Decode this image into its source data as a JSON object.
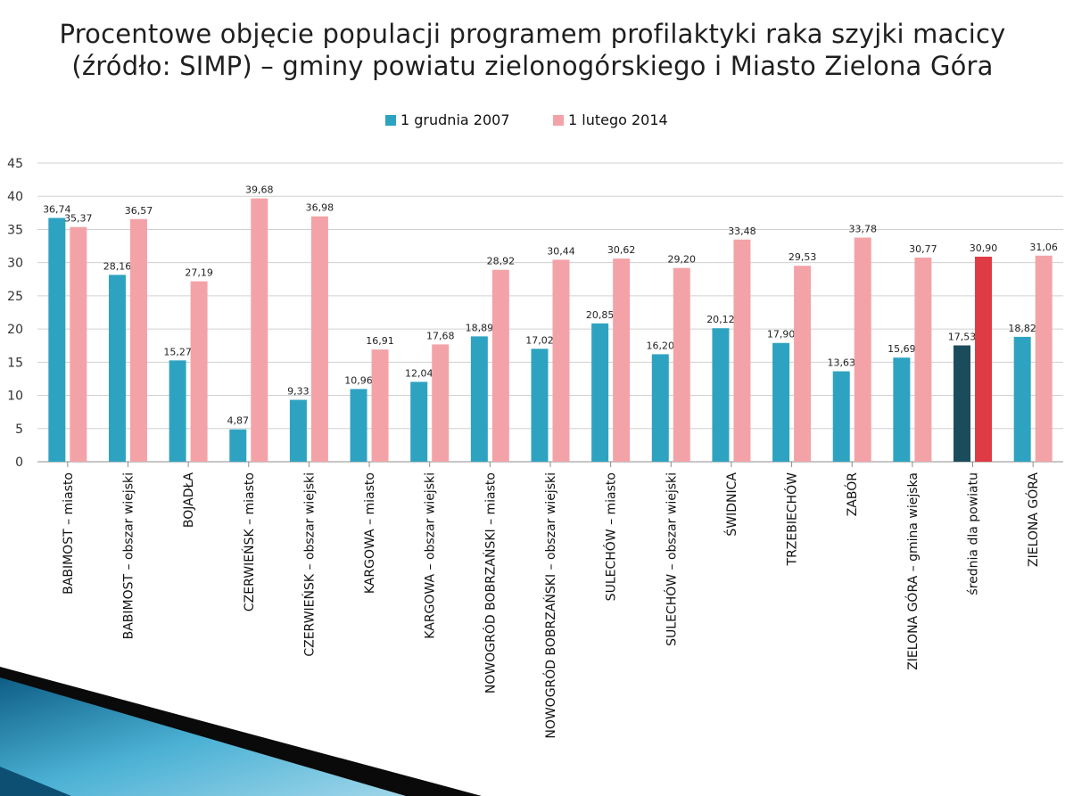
{
  "slide": {
    "title_line1": "Procentowe objęcie populacji programem profilaktyki raka szyjki macicy",
    "title_line2": "(źródło: SIMP) – gminy powiatu zielonogórskiego i Miasto Zielona Góra"
  },
  "chart_data": {
    "type": "bar",
    "title": "",
    "xlabel": "",
    "ylabel": "",
    "ylim": [
      0,
      45
    ],
    "yticks": [
      0,
      5,
      10,
      15,
      20,
      25,
      30,
      35,
      40,
      45
    ],
    "grid": true,
    "legend_position": "top-center",
    "categories": [
      "BABIMOST – miasto",
      "BABIMOST – obszar wiejski",
      "BOJADŁA",
      "CZERWIEŃSK – miasto",
      "CZERWIEŃSK – obszar wiejski",
      "KARGOWA – miasto",
      "KARGOWA – obszar wiejski",
      "NOWOGRÓD BOBRZAŃSKI – miasto",
      "NOWOGRÓD BOBRZAŃSKI – obszar wiejski",
      "SULECHÓW – miasto",
      "SULECHÓW – obszar wiejski",
      "ŚWIDNICA",
      "TRZEBIECHÓW",
      "ZABÓR",
      "ZIELONA GÓRA – gmina wiejska",
      "średnia dla powiatu",
      "ZIELONA GÓRA"
    ],
    "series": [
      {
        "name": "1 grudnia 2007",
        "color": "#2ea3c1",
        "values": [
          36.74,
          28.16,
          15.27,
          4.87,
          9.33,
          10.96,
          12.04,
          18.89,
          17.02,
          20.85,
          16.2,
          20.12,
          17.9,
          13.63,
          15.69,
          17.53,
          18.82
        ],
        "labels": [
          "36,74",
          "28,16",
          "15,27",
          "4,87",
          "9,33",
          "10,96",
          "12,04",
          "18,89",
          "17,02",
          "20,85",
          "16,20",
          "20,12",
          "17,90",
          "13,63",
          "15,69",
          "17,53",
          "18,82"
        ]
      },
      {
        "name": "1 lutego 2014",
        "color": "#f3a3a8",
        "values": [
          35.37,
          36.57,
          27.19,
          39.68,
          36.98,
          16.91,
          17.68,
          28.92,
          30.44,
          30.62,
          29.2,
          33.48,
          29.53,
          33.78,
          30.77,
          30.9,
          31.06
        ],
        "labels": [
          "35,37",
          "36,57",
          "27,19",
          "39,68",
          "36,98",
          "16,91",
          "17,68",
          "28,92",
          "30,44",
          "30,62",
          "29,20",
          "33,48",
          "29,53",
          "33,78",
          "30,77",
          "30,90",
          "31,06"
        ]
      }
    ],
    "highlight": {
      "category_index": 15,
      "colors": [
        "#1a4c5c",
        "#e03a44"
      ]
    }
  }
}
